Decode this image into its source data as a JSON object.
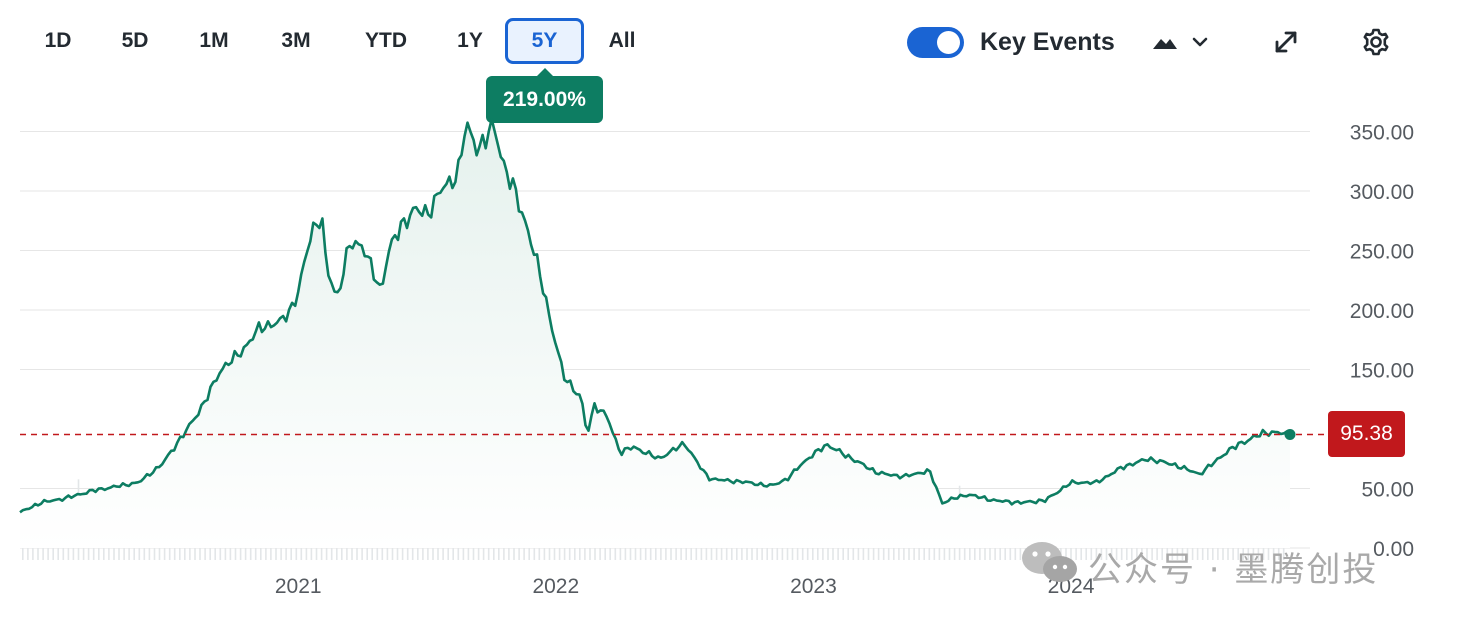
{
  "toolbar": {
    "ranges": [
      "1D",
      "5D",
      "1M",
      "3M",
      "YTD",
      "1Y",
      "5Y",
      "All"
    ],
    "active_range": "5Y",
    "key_events_label": "Key Events",
    "key_events_enabled": true,
    "icons": [
      "mountain-chart-type-icon",
      "chevron-down-icon",
      "expand-icon",
      "settings-gear-icon"
    ]
  },
  "tooltip": {
    "return_label": "219.00%"
  },
  "price_badge": {
    "value": "95.38"
  },
  "watermark": {
    "text": "公众号 · 墨腾创投"
  },
  "colors": {
    "line": "#0d7d62",
    "area_fill": "#e5f1ed",
    "reference_line": "#c1181c",
    "price_badge": "#c1181c",
    "accent": "#1a64d3"
  },
  "chart_data": {
    "type": "area",
    "title": "",
    "xlabel": "",
    "ylabel": "",
    "x_ticks": [
      "2021",
      "2022",
      "2023",
      "2024"
    ],
    "y_ticks": [
      "350.00",
      "300.00",
      "250.00",
      "200.00",
      "150.00",
      "50.00",
      "0.00"
    ],
    "ylim": [
      0,
      360
    ],
    "y_axis_position": "right",
    "grid": true,
    "reference_line": {
      "value": 95.38,
      "style": "dashed"
    },
    "last_price": 95.38,
    "period_return": "219.00%",
    "series": [
      {
        "x": [
          2019.92,
          2020.0,
          2020.1,
          2020.2,
          2020.3,
          2020.38,
          2020.47,
          2020.57,
          2020.63,
          2020.7,
          2020.78,
          2020.85,
          2020.93,
          2020.97,
          2021.0,
          2021.05,
          2021.09,
          2021.11,
          2021.15,
          2021.2,
          2021.25,
          2021.32,
          2021.35,
          2021.4,
          2021.45,
          2021.5,
          2021.55,
          2021.58,
          2021.62,
          2021.65,
          2021.7,
          2021.76,
          2021.8,
          2021.84,
          2021.88,
          2021.92,
          2021.95,
          2021.99,
          2022.03,
          2022.1,
          2022.12,
          2022.15,
          2022.2,
          2022.25,
          2022.3,
          2022.4,
          2022.5,
          2022.57,
          2022.6,
          2022.75,
          2022.83,
          2022.9,
          2022.95,
          2023.05,
          2023.15,
          2023.25,
          2023.35,
          2023.45,
          2023.5,
          2023.55,
          2023.6,
          2023.7,
          2023.8,
          2023.9,
          2024.0,
          2024.1,
          2024.2,
          2024.3,
          2024.4,
          2024.5,
          2024.6,
          2024.65,
          2024.75,
          2024.8,
          2024.85
        ],
        "values": [
          30,
          38,
          42,
          48,
          52,
          55,
          70,
          100,
          120,
          150,
          165,
          185,
          190,
          200,
          215,
          265,
          280,
          235,
          210,
          255,
          255,
          215,
          250,
          270,
          285,
          280,
          300,
          305,
          315,
          355,
          335,
          355,
          320,
          300,
          275,
          245,
          220,
          180,
          145,
          125,
          95,
          120,
          110,
          80,
          85,
          75,
          88,
          65,
          58,
          55,
          52,
          58,
          70,
          87,
          75,
          63,
          60,
          65,
          38,
          42,
          45,
          40,
          38,
          40,
          55,
          55,
          68,
          75,
          70,
          62,
          80,
          87,
          97,
          97,
          95.38
        ]
      }
    ]
  }
}
